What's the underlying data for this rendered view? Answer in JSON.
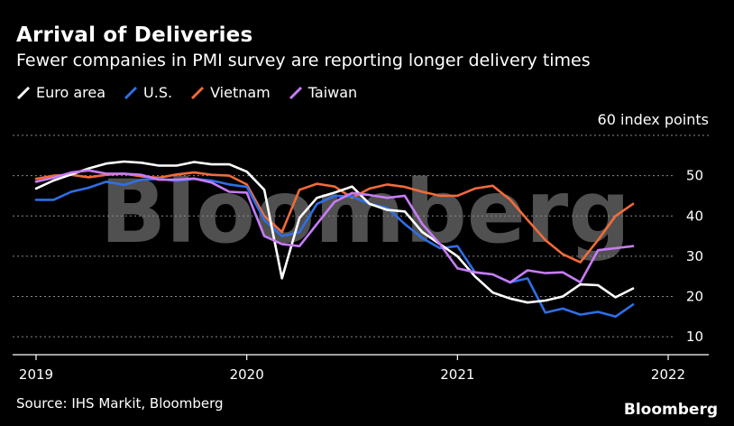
{
  "header": {
    "title": "Arrival of Deliveries",
    "subtitle": "Fewer companies in PMI survey are reporting longer delivery times"
  },
  "units_label": "60 index points",
  "watermark": "Bloomberg",
  "footer": {
    "source": "Source: IHS Markit, Bloomberg",
    "brand": "Bloomberg"
  },
  "chart_data": {
    "type": "line",
    "title": "Arrival of Deliveries",
    "subtitle": "Fewer companies in PMI survey are reporting longer delivery times",
    "ylabel": "60 index points",
    "xlabel": "",
    "ylim": [
      6,
      60
    ],
    "xlim": [
      2019,
      2022.2
    ],
    "y_ticks": [
      10,
      20,
      30,
      40,
      50
    ],
    "x_ticks": [
      "2019",
      "2020",
      "2021",
      "2022"
    ],
    "grid": true,
    "legend_position": "top-left",
    "series": [
      {
        "name": "Euro area",
        "color": "#ffffff",
        "x": [
          2019.0,
          2019.083,
          2019.167,
          2019.25,
          2019.333,
          2019.417,
          2019.5,
          2019.583,
          2019.667,
          2019.75,
          2019.833,
          2019.917,
          2020.0,
          2020.083,
          2020.167,
          2020.25,
          2020.333,
          2020.417,
          2020.5,
          2020.583,
          2020.667,
          2020.75,
          2020.833,
          2020.917,
          2021.0,
          2021.083,
          2021.167,
          2021.25,
          2021.333,
          2021.417,
          2021.5,
          2021.583,
          2021.667,
          2021.75,
          2021.833
        ],
        "values": [
          46.8,
          48.8,
          50.3,
          51.8,
          53.0,
          53.5,
          53.2,
          52.5,
          52.5,
          53.4,
          52.8,
          52.8,
          51.0,
          46.5,
          24.5,
          39.5,
          44.5,
          45.8,
          47.3,
          43.0,
          41.5,
          41.1,
          36.0,
          33.0,
          30.0,
          25.0,
          21.0,
          19.5,
          18.5,
          19.0,
          20.0,
          23.0,
          22.8,
          19.8,
          22.0
        ]
      },
      {
        "name": "U.S.",
        "color": "#2e6fe6",
        "x": [
          2019.0,
          2019.083,
          2019.167,
          2019.25,
          2019.333,
          2019.417,
          2019.5,
          2019.583,
          2019.667,
          2019.75,
          2019.833,
          2019.917,
          2020.0,
          2020.083,
          2020.167,
          2020.25,
          2020.333,
          2020.417,
          2020.5,
          2020.583,
          2020.667,
          2020.75,
          2020.833,
          2020.917,
          2021.0,
          2021.083,
          2021.167,
          2021.25,
          2021.333,
          2021.417,
          2021.5,
          2021.583,
          2021.667,
          2021.75,
          2021.833
        ],
        "values": [
          44.0,
          44.0,
          46.0,
          47.0,
          48.5,
          47.7,
          49.0,
          49.2,
          48.7,
          49.2,
          48.8,
          47.8,
          47.2,
          39.0,
          35.0,
          36.0,
          43.0,
          45.0,
          44.8,
          43.0,
          42.0,
          38.0,
          34.5,
          32.0,
          32.5,
          26.0,
          25.5,
          23.5,
          24.5,
          16.0,
          17.0,
          15.5,
          16.2,
          15.0,
          18.0
        ]
      },
      {
        "name": "Vietnam",
        "color": "#f26b3a",
        "x": [
          2019.0,
          2019.083,
          2019.167,
          2019.25,
          2019.333,
          2019.417,
          2019.5,
          2019.583,
          2019.667,
          2019.75,
          2019.833,
          2019.917,
          2020.0,
          2020.083,
          2020.167,
          2020.25,
          2020.333,
          2020.417,
          2020.5,
          2020.583,
          2020.667,
          2020.75,
          2020.833,
          2020.917,
          2021.0,
          2021.083,
          2021.167,
          2021.25,
          2021.333,
          2021.417,
          2021.5,
          2021.583,
          2021.667,
          2021.75,
          2021.833
        ],
        "values": [
          49.2,
          50.0,
          50.2,
          49.6,
          50.2,
          50.5,
          49.8,
          49.5,
          50.3,
          50.8,
          50.2,
          50.0,
          47.8,
          40.0,
          36.0,
          46.5,
          48.0,
          47.3,
          44.5,
          46.8,
          47.8,
          47.2,
          46.0,
          45.0,
          45.0,
          46.8,
          47.5,
          44.0,
          39.0,
          34.0,
          30.5,
          28.5,
          34.0,
          40.0,
          43.0
        ]
      },
      {
        "name": "Taiwan",
        "color": "#c77cf7",
        "x": [
          2019.0,
          2019.083,
          2019.167,
          2019.25,
          2019.333,
          2019.417,
          2019.5,
          2019.583,
          2019.667,
          2019.75,
          2019.833,
          2019.917,
          2020.0,
          2020.083,
          2020.167,
          2020.25,
          2020.333,
          2020.417,
          2020.5,
          2020.583,
          2020.667,
          2020.75,
          2020.833,
          2020.917,
          2021.0,
          2021.083,
          2021.167,
          2021.25,
          2021.333,
          2021.417,
          2021.5,
          2021.583,
          2021.667,
          2021.75,
          2021.833
        ],
        "values": [
          48.5,
          49.5,
          50.8,
          51.3,
          50.5,
          50.5,
          50.2,
          49.0,
          49.0,
          49.3,
          48.3,
          46.0,
          45.8,
          35.0,
          33.0,
          32.5,
          38.0,
          43.5,
          45.7,
          45.2,
          44.5,
          45.0,
          38.0,
          33.0,
          27.0,
          26.0,
          25.5,
          23.5,
          26.5,
          25.8,
          26.0,
          23.5,
          31.5,
          32.0,
          32.5
        ]
      }
    ]
  }
}
